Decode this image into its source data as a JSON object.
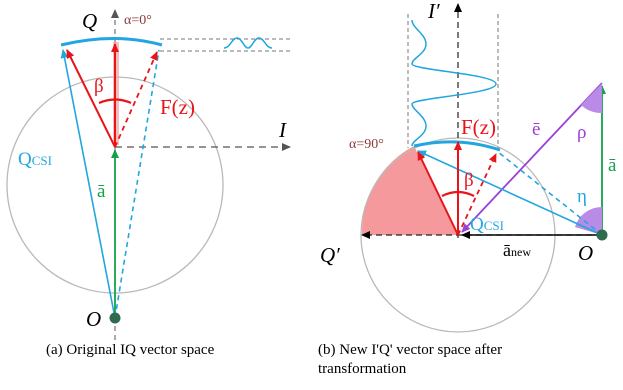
{
  "colors": {
    "circle": "#b9b9b9",
    "blue": "#22a6e0",
    "red": "#e8141a",
    "green": "#13a24a",
    "purple": "#9b3fd9",
    "purple_fill": "#b98ae6",
    "pink_fill": "#f58e92",
    "alpha_label": "#8b3a3a",
    "dark_green": "#2f6b4f",
    "dash": "#555555"
  },
  "panel_a": {
    "label_Q": "Q",
    "alpha": "α=0°",
    "beta": "β",
    "fz": "F(z)",
    "axis_I": "I",
    "qcsi_main": "Q",
    "qcsi_sub": "CSI",
    "a_bar": "ā",
    "origin": "O",
    "caption": "(a) Original IQ vector space"
  },
  "panel_b": {
    "axis_I_prime": "I′",
    "alpha": "α=90°",
    "fz": "F(z)",
    "beta": "β",
    "e_bar": "ē",
    "rho": "ρ",
    "a_bar": "ā",
    "eta": "η",
    "qcsi_main": "Q",
    "qcsi_sub": "CSI",
    "q_prime": "Q′",
    "a_new_main": "ā",
    "a_new_sub": "new",
    "origin": "O",
    "caption_line1": "(b) New I'Q' vector space after",
    "caption_line2": "transformation"
  }
}
